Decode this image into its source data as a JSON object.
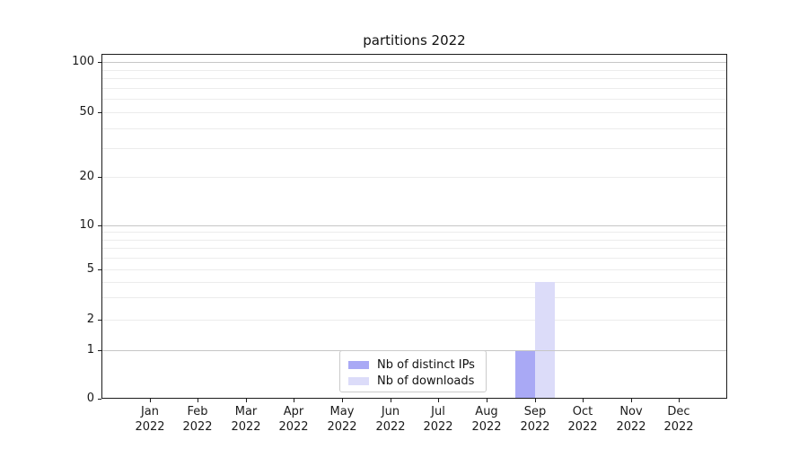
{
  "figure": {
    "background": "#ffffff"
  },
  "chart_data": {
    "type": "bar",
    "title": "partitions 2022",
    "categories": [
      "Jan 2022",
      "Feb 2022",
      "Mar 2022",
      "Apr 2022",
      "May 2022",
      "Jun 2022",
      "Jul 2022",
      "Aug 2022",
      "Sep 2022",
      "Oct 2022",
      "Nov 2022",
      "Dec 2022"
    ],
    "series": [
      {
        "name": "Nb of distinct IPs",
        "color": "#a9a9f5",
        "values": [
          0,
          0,
          0,
          0,
          0,
          0,
          0,
          0,
          1,
          0,
          0,
          0
        ]
      },
      {
        "name": "Nb of downloads",
        "color": "#dcdcf9",
        "values": [
          0,
          0,
          0,
          0,
          0,
          0,
          0,
          0,
          4,
          0,
          0,
          0
        ]
      }
    ],
    "x_axis": {
      "tick_labels_line2": "2022"
    },
    "y_axis": {
      "scale": "log-like",
      "ticks": [
        0,
        1,
        2,
        5,
        10,
        20,
        50,
        100
      ],
      "major_gridline_values": [
        1,
        10,
        100
      ],
      "minor_gridline_values": [
        2,
        3,
        4,
        5,
        6,
        7,
        8,
        9,
        20,
        30,
        40,
        50,
        60,
        70,
        80,
        90
      ],
      "anchors": [
        [
          0,
          0
        ],
        [
          1,
          0.1406
        ],
        [
          2,
          0.2292
        ],
        [
          5,
          0.375
        ],
        [
          10,
          0.5026
        ],
        [
          20,
          0.6432
        ],
        [
          50,
          0.8307
        ],
        [
          100,
          0.9766
        ]
      ]
    },
    "legend": {
      "position": "lower center",
      "entries": [
        "Nb of distinct IPs",
        "Nb of downloads"
      ]
    },
    "grid": true
  },
  "colors": {
    "bar_distinct_ips": "#a9a9f5",
    "bar_downloads": "#dcdcf9",
    "major_grid": "#c6c6c6",
    "minor_grid": "#ececec",
    "spine": "#1c1c1c",
    "text": "#1a1a1a",
    "legend_border": "#cbcbcb"
  }
}
